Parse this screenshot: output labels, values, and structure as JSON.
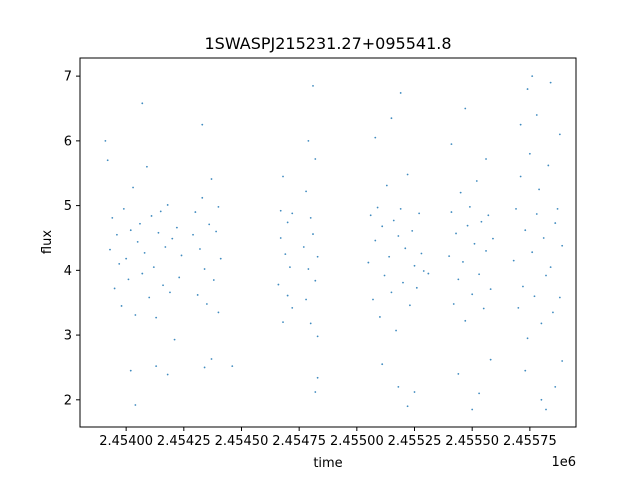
{
  "chart_data": {
    "type": "scatter",
    "title": "1SWASPJ215231.27+095541.8",
    "xlabel": "time",
    "ylabel": "flux",
    "x_offset_label": "1e6",
    "xlim": [
      2.4538,
      2.45595
    ],
    "ylim": [
      1.58,
      7.28
    ],
    "x_ticks": [
      {
        "value": 2.454,
        "label": "2.45400"
      },
      {
        "value": 2.45425,
        "label": "2.45425"
      },
      {
        "value": 2.4545,
        "label": "2.45450"
      },
      {
        "value": 2.45475,
        "label": "2.45475"
      },
      {
        "value": 2.455,
        "label": "2.45500"
      },
      {
        "value": 2.45525,
        "label": "2.45525"
      },
      {
        "value": 2.4555,
        "label": "2.45550"
      },
      {
        "value": 2.45575,
        "label": "2.45575"
      }
    ],
    "y_ticks": [
      {
        "value": 2,
        "label": "2"
      },
      {
        "value": 3,
        "label": "3"
      },
      {
        "value": 4,
        "label": "4"
      },
      {
        "value": 5,
        "label": "5"
      },
      {
        "value": 6,
        "label": "6"
      },
      {
        "value": 7,
        "label": "7"
      }
    ],
    "marker_color": "#1f77b4",
    "grid": false,
    "series": [
      {
        "points": [
          [
            2.45393,
            4.32
          ],
          [
            2.45394,
            4.81
          ],
          [
            2.45395,
            3.72
          ],
          [
            2.45396,
            4.55
          ],
          [
            2.45397,
            4.1
          ],
          [
            2.45398,
            3.45
          ],
          [
            2.45399,
            4.95
          ],
          [
            2.454,
            4.18
          ],
          [
            2.45401,
            3.86
          ],
          [
            2.45402,
            4.62
          ],
          [
            2.45403,
            5.28
          ],
          [
            2.45404,
            3.31
          ],
          [
            2.45405,
            4.44
          ],
          [
            2.45406,
            4.72
          ],
          [
            2.45407,
            3.95
          ],
          [
            2.45408,
            4.27
          ],
          [
            2.45409,
            5.6
          ],
          [
            2.4541,
            3.58
          ],
          [
            2.45411,
            4.84
          ],
          [
            2.45412,
            4.05
          ],
          [
            2.45413,
            3.27
          ],
          [
            2.45414,
            4.58
          ],
          [
            2.45415,
            4.91
          ],
          [
            2.45416,
            3.77
          ],
          [
            2.45417,
            4.36
          ],
          [
            2.45418,
            5.01
          ],
          [
            2.45419,
            3.66
          ],
          [
            2.4542,
            4.49
          ],
          [
            2.45421,
            2.93
          ],
          [
            2.45422,
            4.66
          ],
          [
            2.45423,
            3.89
          ],
          [
            2.45424,
            4.23
          ],
          [
            2.45391,
            6.0
          ],
          [
            2.45392,
            5.7
          ],
          [
            2.45402,
            2.45
          ],
          [
            2.45404,
            1.92
          ],
          [
            2.45407,
            6.58
          ],
          [
            2.45413,
            2.52
          ],
          [
            2.45418,
            2.39
          ]
        ]
      },
      {
        "points": [
          [
            2.45429,
            4.55
          ],
          [
            2.4543,
            4.9
          ],
          [
            2.45431,
            3.62
          ],
          [
            2.45432,
            4.33
          ],
          [
            2.45433,
            5.12
          ],
          [
            2.45434,
            4.02
          ],
          [
            2.45435,
            3.48
          ],
          [
            2.45436,
            4.71
          ],
          [
            2.45437,
            5.41
          ],
          [
            2.45438,
            3.85
          ],
          [
            2.45439,
            4.6
          ],
          [
            2.4544,
            3.35
          ],
          [
            2.4544,
            4.98
          ],
          [
            2.45441,
            4.18
          ],
          [
            2.45433,
            6.25
          ],
          [
            2.45434,
            2.5
          ],
          [
            2.45437,
            2.63
          ],
          [
            2.45446,
            2.52
          ]
        ]
      },
      {
        "points": [
          [
            2.45466,
            3.78
          ],
          [
            2.45467,
            4.5
          ],
          [
            2.45467,
            4.92
          ],
          [
            2.45468,
            3.2
          ],
          [
            2.45469,
            4.25
          ],
          [
            2.4547,
            4.74
          ],
          [
            2.4547,
            3.61
          ],
          [
            2.45471,
            4.05
          ],
          [
            2.45472,
            4.88
          ],
          [
            2.45472,
            3.42
          ],
          [
            2.45468,
            5.45
          ],
          [
            2.45477,
            4.36
          ],
          [
            2.45478,
            3.55
          ],
          [
            2.45478,
            5.22
          ],
          [
            2.45479,
            4.02
          ],
          [
            2.4548,
            4.81
          ],
          [
            2.4548,
            3.18
          ],
          [
            2.45481,
            4.56
          ],
          [
            2.45482,
            3.84
          ],
          [
            2.45482,
            5.72
          ],
          [
            2.45483,
            4.21
          ],
          [
            2.45483,
            2.98
          ],
          [
            2.45479,
            6.0
          ],
          [
            2.45481,
            6.85
          ],
          [
            2.45482,
            2.12
          ],
          [
            2.45483,
            2.34
          ]
        ]
      },
      {
        "points": [
          [
            2.45505,
            4.12
          ],
          [
            2.45506,
            4.85
          ],
          [
            2.45507,
            3.55
          ],
          [
            2.45508,
            4.46
          ],
          [
            2.45509,
            4.97
          ],
          [
            2.4551,
            3.28
          ],
          [
            2.45511,
            4.68
          ],
          [
            2.45512,
            3.92
          ],
          [
            2.45513,
            5.31
          ],
          [
            2.45514,
            4.21
          ],
          [
            2.45515,
            3.66
          ],
          [
            2.45516,
            4.77
          ],
          [
            2.45517,
            3.07
          ],
          [
            2.45518,
            4.53
          ],
          [
            2.45519,
            4.95
          ],
          [
            2.4552,
            3.81
          ],
          [
            2.45521,
            4.34
          ],
          [
            2.45522,
            5.48
          ],
          [
            2.45523,
            3.46
          ],
          [
            2.45524,
            4.61
          ],
          [
            2.45525,
            4.07
          ],
          [
            2.45526,
            3.73
          ],
          [
            2.45527,
            4.88
          ],
          [
            2.45528,
            4.26
          ],
          [
            2.45529,
            3.99
          ],
          [
            2.45508,
            6.05
          ],
          [
            2.45511,
            2.55
          ],
          [
            2.45515,
            6.35
          ],
          [
            2.45518,
            2.2
          ],
          [
            2.45519,
            6.74
          ],
          [
            2.45522,
            1.9
          ],
          [
            2.45525,
            2.12
          ],
          [
            2.45531,
            3.95
          ]
        ]
      },
      {
        "points": [
          [
            2.4554,
            4.22
          ],
          [
            2.45541,
            4.9
          ],
          [
            2.45542,
            3.48
          ],
          [
            2.45543,
            4.57
          ],
          [
            2.45544,
            3.86
          ],
          [
            2.45545,
            5.2
          ],
          [
            2.45546,
            4.13
          ],
          [
            2.45547,
            3.22
          ],
          [
            2.45548,
            4.69
          ],
          [
            2.45549,
            4.98
          ],
          [
            2.4555,
            3.63
          ],
          [
            2.45551,
            4.41
          ],
          [
            2.45552,
            5.38
          ],
          [
            2.45553,
            3.94
          ],
          [
            2.45554,
            4.75
          ],
          [
            2.45555,
            3.41
          ],
          [
            2.45556,
            4.3
          ],
          [
            2.45557,
            4.85
          ],
          [
            2.45558,
            3.71
          ],
          [
            2.45559,
            4.49
          ],
          [
            2.45541,
            5.95
          ],
          [
            2.45544,
            2.4
          ],
          [
            2.45547,
            6.5
          ],
          [
            2.4555,
            1.85
          ],
          [
            2.45553,
            2.1
          ],
          [
            2.45556,
            5.72
          ],
          [
            2.45558,
            2.62
          ]
        ]
      },
      {
        "points": [
          [
            2.45568,
            4.15
          ],
          [
            2.45569,
            4.95
          ],
          [
            2.4557,
            3.42
          ],
          [
            2.45571,
            5.45
          ],
          [
            2.45572,
            3.75
          ],
          [
            2.45573,
            4.62
          ],
          [
            2.45574,
            2.95
          ],
          [
            2.45575,
            5.8
          ],
          [
            2.45576,
            4.28
          ],
          [
            2.45577,
            3.6
          ],
          [
            2.45578,
            4.87
          ],
          [
            2.45579,
            5.25
          ],
          [
            2.4558,
            3.18
          ],
          [
            2.45581,
            4.5
          ],
          [
            2.45582,
            3.92
          ],
          [
            2.45583,
            5.62
          ],
          [
            2.45584,
            4.05
          ],
          [
            2.45585,
            3.35
          ],
          [
            2.45586,
            4.73
          ],
          [
            2.45587,
            4.95
          ],
          [
            2.45588,
            3.58
          ],
          [
            2.45589,
            4.38
          ],
          [
            2.45574,
            6.8
          ],
          [
            2.45576,
            7.0
          ],
          [
            2.45578,
            6.4
          ],
          [
            2.4558,
            2.0
          ],
          [
            2.45582,
            1.85
          ],
          [
            2.45584,
            6.9
          ],
          [
            2.45586,
            2.2
          ],
          [
            2.45588,
            6.1
          ],
          [
            2.45573,
            2.45
          ],
          [
            2.45571,
            6.25
          ],
          [
            2.45589,
            2.6
          ]
        ]
      }
    ]
  }
}
